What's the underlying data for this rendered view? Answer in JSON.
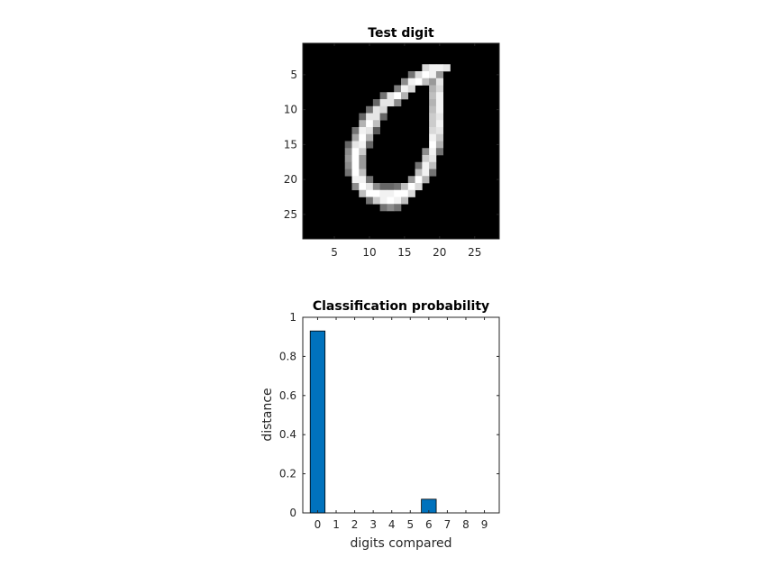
{
  "chart_data": [
    {
      "type": "heatmap",
      "title": "Test digit",
      "colormap": "gray",
      "x_ticks": [
        "5",
        "10",
        "15",
        "20",
        "25"
      ],
      "y_ticks": [
        "5",
        "10",
        "15",
        "20",
        "25"
      ],
      "xlim": [
        0.5,
        28.5
      ],
      "ylim": [
        0.5,
        28.5
      ],
      "grid": false,
      "pixels": [
        {
          "r": 4,
          "c": 18,
          "v": 0.85
        },
        {
          "r": 4,
          "c": 19,
          "v": 0.95
        },
        {
          "r": 4,
          "c": 20,
          "v": 0.95
        },
        {
          "r": 4,
          "c": 21,
          "v": 0.9
        },
        {
          "r": 5,
          "c": 16,
          "v": 0.45
        },
        {
          "r": 5,
          "c": 17,
          "v": 0.85
        },
        {
          "r": 5,
          "c": 18,
          "v": 1.0
        },
        {
          "r": 5,
          "c": 19,
          "v": 0.95
        },
        {
          "r": 5,
          "c": 20,
          "v": 0.6
        },
        {
          "r": 6,
          "c": 15,
          "v": 0.55
        },
        {
          "r": 6,
          "c": 16,
          "v": 0.95
        },
        {
          "r": 6,
          "c": 17,
          "v": 1.0
        },
        {
          "r": 6,
          "c": 18,
          "v": 0.75
        },
        {
          "r": 6,
          "c": 19,
          "v": 0.6
        },
        {
          "r": 6,
          "c": 20,
          "v": 0.9
        },
        {
          "r": 7,
          "c": 14,
          "v": 0.5
        },
        {
          "r": 7,
          "c": 15,
          "v": 0.95
        },
        {
          "r": 7,
          "c": 16,
          "v": 0.85
        },
        {
          "r": 7,
          "c": 19,
          "v": 0.7
        },
        {
          "r": 7,
          "c": 20,
          "v": 0.85
        },
        {
          "r": 8,
          "c": 12,
          "v": 0.45
        },
        {
          "r": 8,
          "c": 13,
          "v": 0.9
        },
        {
          "r": 8,
          "c": 14,
          "v": 1.0
        },
        {
          "r": 8,
          "c": 15,
          "v": 0.7
        },
        {
          "r": 8,
          "c": 19,
          "v": 0.75
        },
        {
          "r": 8,
          "c": 20,
          "v": 0.95
        },
        {
          "r": 9,
          "c": 11,
          "v": 0.4
        },
        {
          "r": 9,
          "c": 12,
          "v": 0.9
        },
        {
          "r": 9,
          "c": 13,
          "v": 0.9
        },
        {
          "r": 9,
          "c": 14,
          "v": 0.55
        },
        {
          "r": 9,
          "c": 19,
          "v": 0.7
        },
        {
          "r": 9,
          "c": 20,
          "v": 0.95
        },
        {
          "r": 10,
          "c": 10,
          "v": 0.45
        },
        {
          "r": 10,
          "c": 11,
          "v": 0.9
        },
        {
          "r": 10,
          "c": 12,
          "v": 0.85
        },
        {
          "r": 10,
          "c": 19,
          "v": 0.75
        },
        {
          "r": 10,
          "c": 20,
          "v": 0.95
        },
        {
          "r": 11,
          "c": 9,
          "v": 0.4
        },
        {
          "r": 11,
          "c": 10,
          "v": 0.9
        },
        {
          "r": 11,
          "c": 11,
          "v": 0.9
        },
        {
          "r": 11,
          "c": 12,
          "v": 0.4
        },
        {
          "r": 11,
          "c": 19,
          "v": 0.8
        },
        {
          "r": 11,
          "c": 20,
          "v": 0.9
        },
        {
          "r": 12,
          "c": 9,
          "v": 0.7
        },
        {
          "r": 12,
          "c": 10,
          "v": 1.0
        },
        {
          "r": 12,
          "c": 11,
          "v": 0.75
        },
        {
          "r": 12,
          "c": 19,
          "v": 0.8
        },
        {
          "r": 12,
          "c": 20,
          "v": 0.95
        },
        {
          "r": 13,
          "c": 8,
          "v": 0.45
        },
        {
          "r": 13,
          "c": 9,
          "v": 0.95
        },
        {
          "r": 13,
          "c": 10,
          "v": 0.9
        },
        {
          "r": 13,
          "c": 11,
          "v": 0.35
        },
        {
          "r": 13,
          "c": 19,
          "v": 0.85
        },
        {
          "r": 13,
          "c": 20,
          "v": 0.9
        },
        {
          "r": 14,
          "c": 8,
          "v": 0.65
        },
        {
          "r": 14,
          "c": 9,
          "v": 1.0
        },
        {
          "r": 14,
          "c": 10,
          "v": 0.7
        },
        {
          "r": 14,
          "c": 19,
          "v": 0.95
        },
        {
          "r": 14,
          "c": 20,
          "v": 0.8
        },
        {
          "r": 15,
          "c": 7,
          "v": 0.4
        },
        {
          "r": 15,
          "c": 8,
          "v": 0.9
        },
        {
          "r": 15,
          "c": 9,
          "v": 0.95
        },
        {
          "r": 15,
          "c": 10,
          "v": 0.4
        },
        {
          "r": 15,
          "c": 19,
          "v": 1.0
        },
        {
          "r": 15,
          "c": 20,
          "v": 0.7
        },
        {
          "r": 16,
          "c": 7,
          "v": 0.55
        },
        {
          "r": 16,
          "c": 8,
          "v": 1.0
        },
        {
          "r": 16,
          "c": 9,
          "v": 0.8
        },
        {
          "r": 16,
          "c": 18,
          "v": 0.55
        },
        {
          "r": 16,
          "c": 19,
          "v": 0.95
        },
        {
          "r": 16,
          "c": 20,
          "v": 0.45
        },
        {
          "r": 17,
          "c": 7,
          "v": 0.6
        },
        {
          "r": 17,
          "c": 8,
          "v": 1.0
        },
        {
          "r": 17,
          "c": 9,
          "v": 0.6
        },
        {
          "r": 17,
          "c": 18,
          "v": 0.8
        },
        {
          "r": 17,
          "c": 19,
          "v": 0.9
        },
        {
          "r": 18,
          "c": 7,
          "v": 0.55
        },
        {
          "r": 18,
          "c": 8,
          "v": 1.0
        },
        {
          "r": 18,
          "c": 9,
          "v": 0.6
        },
        {
          "r": 18,
          "c": 17,
          "v": 0.45
        },
        {
          "r": 18,
          "c": 18,
          "v": 0.95
        },
        {
          "r": 18,
          "c": 19,
          "v": 0.75
        },
        {
          "r": 19,
          "c": 7,
          "v": 0.45
        },
        {
          "r": 19,
          "c": 8,
          "v": 1.0
        },
        {
          "r": 19,
          "c": 9,
          "v": 0.75
        },
        {
          "r": 19,
          "c": 17,
          "v": 0.75
        },
        {
          "r": 19,
          "c": 18,
          "v": 0.95
        },
        {
          "r": 19,
          "c": 19,
          "v": 0.45
        },
        {
          "r": 20,
          "c": 8,
          "v": 0.95
        },
        {
          "r": 20,
          "c": 9,
          "v": 0.95
        },
        {
          "r": 20,
          "c": 10,
          "v": 0.45
        },
        {
          "r": 20,
          "c": 16,
          "v": 0.6
        },
        {
          "r": 20,
          "c": 17,
          "v": 1.0
        },
        {
          "r": 20,
          "c": 18,
          "v": 0.7
        },
        {
          "r": 21,
          "c": 8,
          "v": 0.55
        },
        {
          "r": 21,
          "c": 9,
          "v": 1.0
        },
        {
          "r": 21,
          "c": 10,
          "v": 0.9
        },
        {
          "r": 21,
          "c": 11,
          "v": 0.55
        },
        {
          "r": 21,
          "c": 12,
          "v": 0.4
        },
        {
          "r": 21,
          "c": 13,
          "v": 0.4
        },
        {
          "r": 21,
          "c": 14,
          "v": 0.45
        },
        {
          "r": 21,
          "c": 15,
          "v": 0.75
        },
        {
          "r": 21,
          "c": 16,
          "v": 1.0
        },
        {
          "r": 21,
          "c": 17,
          "v": 0.85
        },
        {
          "r": 22,
          "c": 9,
          "v": 0.75
        },
        {
          "r": 22,
          "c": 10,
          "v": 1.0
        },
        {
          "r": 22,
          "c": 11,
          "v": 1.0
        },
        {
          "r": 22,
          "c": 12,
          "v": 0.95
        },
        {
          "r": 22,
          "c": 13,
          "v": 0.95
        },
        {
          "r": 22,
          "c": 14,
          "v": 1.0
        },
        {
          "r": 22,
          "c": 15,
          "v": 1.0
        },
        {
          "r": 22,
          "c": 16,
          "v": 0.85
        },
        {
          "r": 23,
          "c": 10,
          "v": 0.45
        },
        {
          "r": 23,
          "c": 11,
          "v": 0.8
        },
        {
          "r": 23,
          "c": 12,
          "v": 0.95
        },
        {
          "r": 23,
          "c": 13,
          "v": 1.0
        },
        {
          "r": 23,
          "c": 14,
          "v": 0.95
        },
        {
          "r": 23,
          "c": 15,
          "v": 0.75
        },
        {
          "r": 24,
          "c": 12,
          "v": 0.45
        },
        {
          "r": 24,
          "c": 13,
          "v": 0.55
        },
        {
          "r": 24,
          "c": 14,
          "v": 0.45
        }
      ]
    },
    {
      "type": "bar",
      "title": "Classification probability",
      "xlabel": "digits compared",
      "ylabel": "distance",
      "categories": [
        "0",
        "1",
        "2",
        "3",
        "4",
        "5",
        "6",
        "7",
        "8",
        "9"
      ],
      "values": [
        0.93,
        0,
        0,
        0,
        0,
        0,
        0.07,
        0,
        0,
        0
      ],
      "ylim": [
        0,
        1
      ],
      "y_ticks": [
        "0",
        "0.2",
        "0.4",
        "0.6",
        "0.8",
        "1"
      ],
      "bar_color": "#0072BD",
      "grid": false
    }
  ]
}
